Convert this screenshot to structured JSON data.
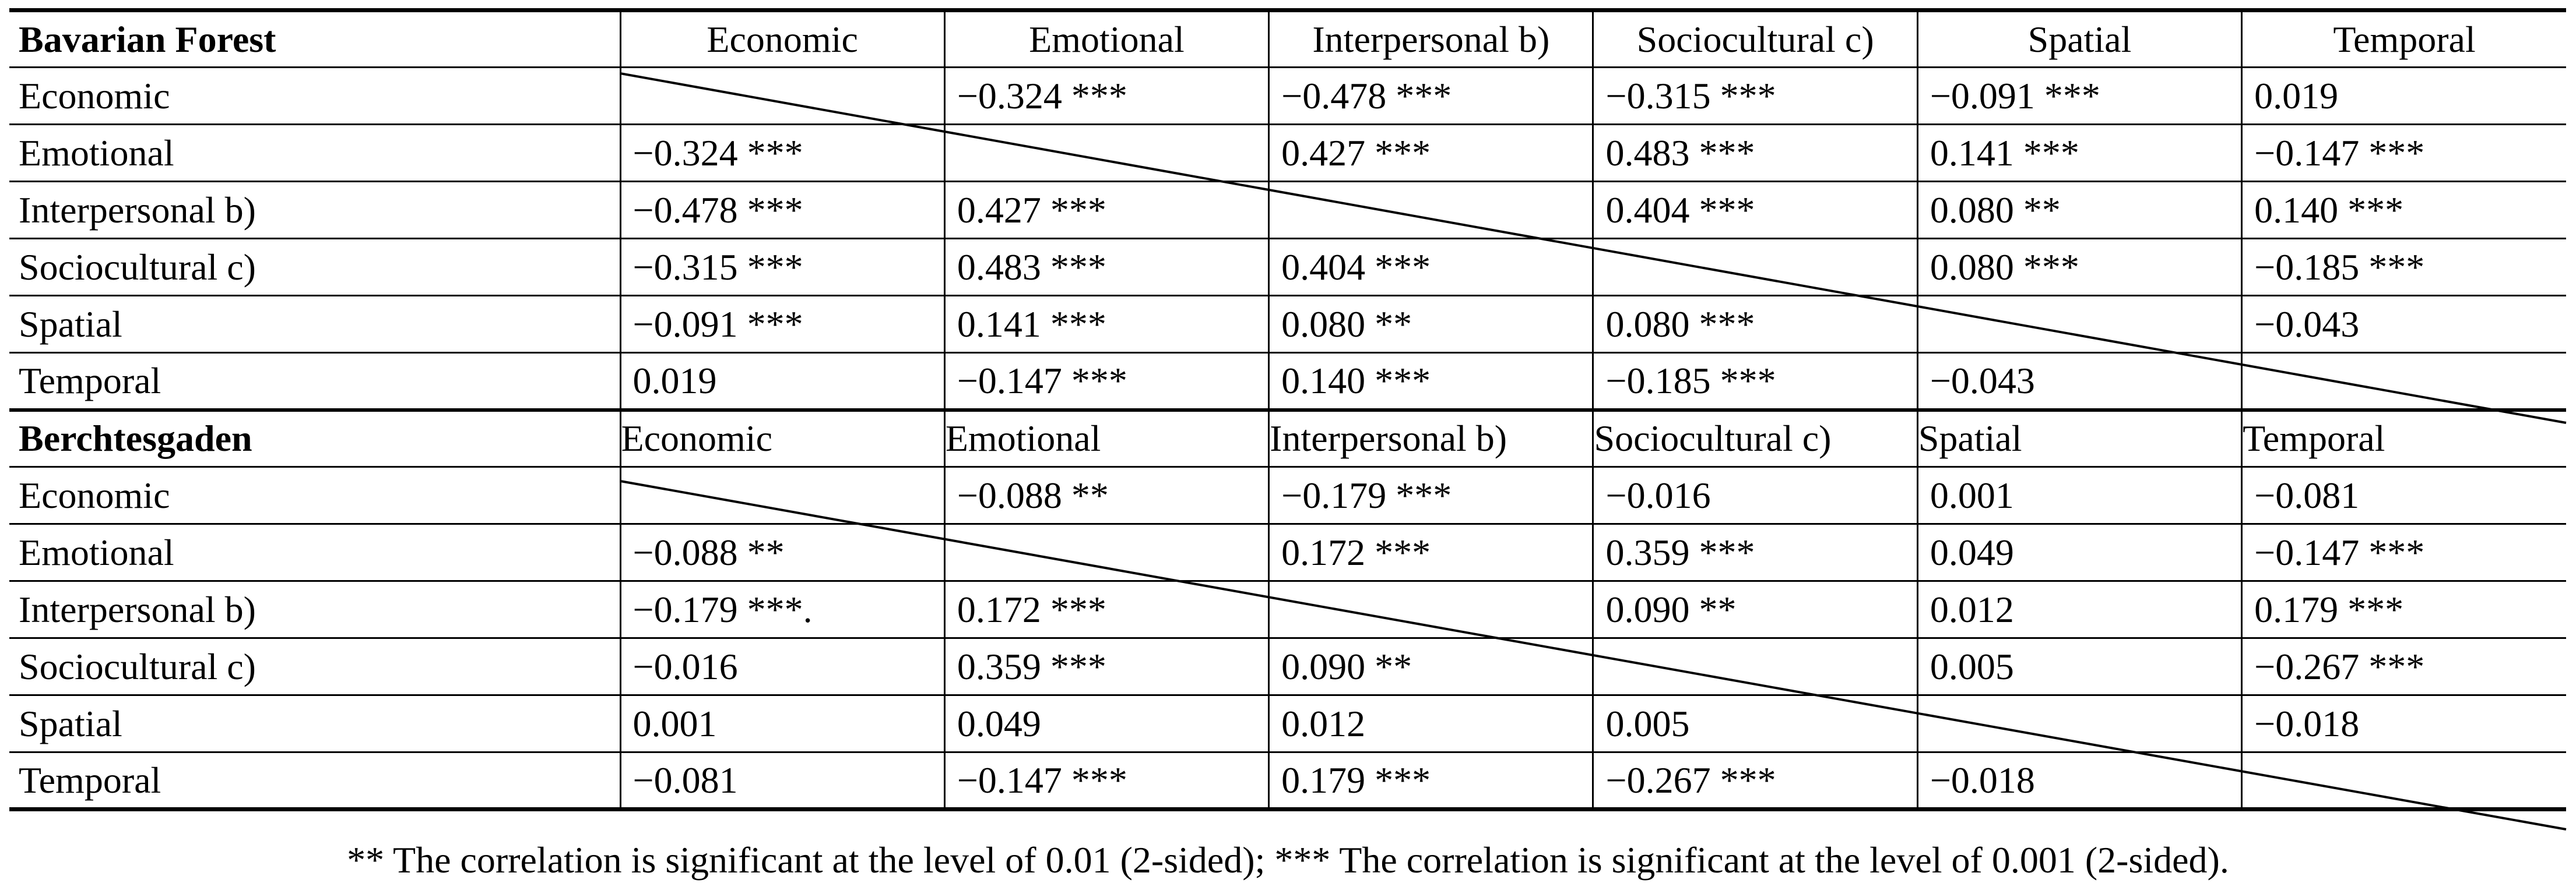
{
  "footnote": "** The correlation is significant at the level of 0.01 (2-sided); *** The correlation is significant at the level of 0.001 (2-sided).",
  "sections": [
    {
      "title": "Bavarian Forest",
      "columns": [
        "Economic",
        "Emotional",
        "Interpersonal b)",
        "Sociocultural c)",
        "Spatial",
        "Temporal"
      ],
      "rows": [
        {
          "label": "Economic",
          "cells": [
            "",
            "−0.324 ***",
            "−0.478 ***",
            "−0.315 ***",
            "−0.091 ***",
            "0.019"
          ]
        },
        {
          "label": "Emotional",
          "cells": [
            "−0.324 ***",
            "",
            "0.427 ***",
            "0.483 ***",
            "0.141 ***",
            "−0.147 ***"
          ]
        },
        {
          "label": "Interpersonal b)",
          "cells": [
            "−0.478 ***",
            "0.427 ***",
            "",
            "0.404 ***",
            "0.080 **",
            "0.140 ***"
          ]
        },
        {
          "label": "Sociocultural c)",
          "cells": [
            "−0.315 ***",
            "0.483 ***",
            "0.404 ***",
            "",
            "0.080 ***",
            "−0.185 ***"
          ]
        },
        {
          "label": "Spatial",
          "cells": [
            "−0.091 ***",
            "0.141 ***",
            "0.080 **",
            "0.080 ***",
            "",
            "−0.043"
          ]
        },
        {
          "label": "Temporal",
          "cells": [
            "0.019",
            "−0.147 ***",
            "0.140 ***",
            "−0.185 ***",
            "−0.043",
            ""
          ]
        }
      ]
    },
    {
      "title": "Berchtesgaden",
      "columns": [
        "Economic",
        "Emotional",
        "Interpersonal b)",
        "Sociocultural c)",
        "Spatial",
        "Temporal"
      ],
      "rows": [
        {
          "label": "Economic",
          "cells": [
            "",
            "−0.088 **",
            "−0.179 ***",
            "−0.016",
            "0.001",
            "−0.081"
          ]
        },
        {
          "label": "Emotional",
          "cells": [
            "−0.088 **",
            "",
            "0.172 ***",
            "0.359 ***",
            "0.049",
            "−0.147 ***"
          ]
        },
        {
          "label": "Interpersonal b)",
          "cells": [
            "−0.179 ***.",
            "0.172 ***",
            "",
            "0.090 **",
            "0.012",
            "0.179 ***"
          ]
        },
        {
          "label": "Sociocultural c)",
          "cells": [
            "−0.016",
            "0.359 ***",
            "0.090 **",
            "",
            "0.005",
            "−0.267 ***"
          ]
        },
        {
          "label": "Spatial",
          "cells": [
            "0.001",
            "0.049",
            "0.012",
            "0.005",
            "",
            "−0.018"
          ]
        },
        {
          "label": "Temporal",
          "cells": [
            "−0.081",
            "−0.147 ***",
            "0.179 ***",
            "−0.267 ***",
            "−0.018",
            ""
          ]
        }
      ]
    }
  ]
}
